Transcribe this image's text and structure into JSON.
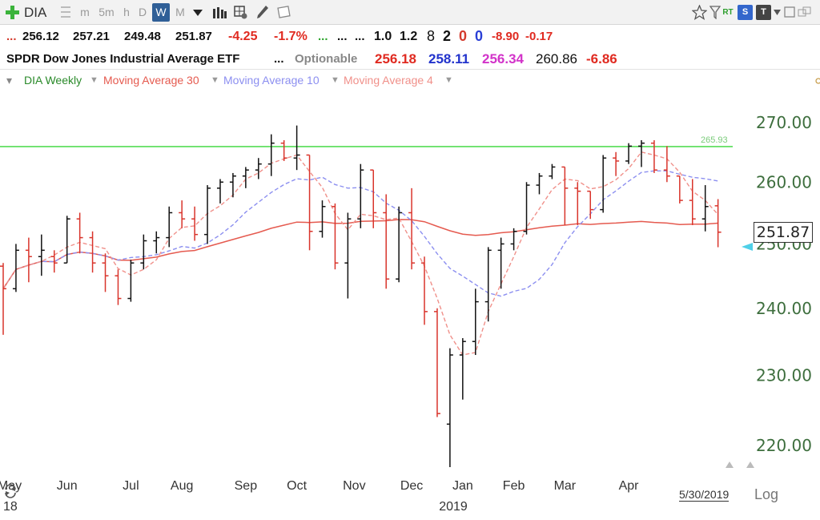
{
  "toolbar": {
    "symbol": "DIA",
    "intervals": [
      "m",
      "5m",
      "h",
      "D",
      "W",
      "M"
    ],
    "active_interval": "W",
    "rt_label": "RT",
    "s_label": "S",
    "t_label": "T"
  },
  "quote": {
    "prefix": "...",
    "open": "256.12",
    "high": "257.21",
    "low": "249.48",
    "close": "251.87",
    "change": "-4.25",
    "change_pct": "-1.7%",
    "dots_green": "...",
    "dots_black1": "...",
    "dots_black2": "...",
    "v1": "1.0",
    "v2": "1.2",
    "n1": "8",
    "n2": "2",
    "n3": "0",
    "n4": "0",
    "d1": "-8.90",
    "d2": "-0.17"
  },
  "info": {
    "name": "SPDR Dow Jones Industrial Average ETF",
    "dots": "...",
    "optionable": "Optionable",
    "p1": "256.18",
    "p2": "258.11",
    "p3": "256.34",
    "p4": "260.86",
    "p5": "-6.86"
  },
  "legend": {
    "series": "DIA Weekly",
    "ma30": "Moving Average 30",
    "ma10": "Moving Average 10",
    "ma4": "Moving Average 4"
  },
  "colors": {
    "up": "#111111",
    "down": "#d9342b",
    "ma30": "#e55a4f",
    "ma10": "#8c8ff0",
    "ma4": "#f0908a",
    "hline": "#55dd55",
    "axis_text": "#3d6e3d"
  },
  "chart_data": {
    "type": "ohlc",
    "y_ticks": [
      "270.00",
      "260.00",
      "250.00",
      "240.00",
      "230.00",
      "220.00"
    ],
    "ylim": [
      216,
      275
    ],
    "x_labels": [
      "May",
      "Jun",
      "Jul",
      "Aug",
      "Sep",
      "Oct",
      "Nov",
      "Dec",
      "Jan",
      "Feb",
      "Mar",
      "Apr"
    ],
    "x_label_weeks": [
      0.5,
      5,
      10,
      14,
      19,
      23,
      27.5,
      32,
      36,
      40,
      44,
      49
    ],
    "year_label": "2019",
    "year_prefix": "18",
    "date_label": "5/30/2019",
    "scale_label": "Log",
    "horizontal_line": {
      "value": 265.93,
      "label": "265.93"
    },
    "last_price_label": "251.87",
    "last_price": 251.87,
    "bars": [
      [
        246.5,
        247,
        236,
        243
      ],
      [
        243,
        250,
        242.5,
        249
      ],
      [
        249,
        251,
        244,
        248
      ],
      [
        248,
        251.5,
        245,
        249
      ],
      [
        248,
        249,
        245.5,
        247
      ],
      [
        247,
        254.5,
        247,
        254
      ],
      [
        254,
        255,
        248.5,
        251
      ],
      [
        251,
        252,
        245.5,
        247
      ],
      [
        247,
        248.5,
        242.5,
        245
      ],
      [
        245,
        246,
        240.5,
        241.5
      ],
      [
        241.5,
        247.5,
        241,
        247
      ],
      [
        247,
        251.5,
        246,
        250.5
      ],
      [
        250.5,
        252,
        248.5,
        251
      ],
      [
        251,
        256,
        249.5,
        255
      ],
      [
        255,
        257,
        252.5,
        254
      ],
      [
        254,
        256,
        250.5,
        251.5
      ],
      [
        251.5,
        259.5,
        250,
        259
      ],
      [
        259,
        260.5,
        256.5,
        260
      ],
      [
        260,
        261.5,
        257.5,
        261
      ],
      [
        261,
        262.5,
        259,
        262
      ],
      [
        262,
        264,
        260.5,
        263
      ],
      [
        263,
        268,
        261,
        266.5
      ],
      [
        266.5,
        267,
        263.5,
        264
      ],
      [
        264,
        269.5,
        262,
        264.5
      ],
      [
        264.5,
        264.5,
        249,
        252
      ],
      [
        252,
        257,
        251,
        256
      ],
      [
        256,
        256.5,
        246,
        247
      ],
      [
        247,
        255,
        241.5,
        254
      ],
      [
        254,
        263,
        252.5,
        262
      ],
      [
        262,
        262,
        252.5,
        255
      ],
      [
        255,
        258,
        243,
        244.5
      ],
      [
        244.5,
        256,
        244,
        255
      ],
      [
        255,
        259,
        246,
        247
      ],
      [
        247,
        248,
        237.5,
        239.5
      ],
      [
        239.5,
        240,
        224,
        224.5
      ],
      [
        223,
        234,
        217,
        233
      ],
      [
        233,
        235.5,
        226.5,
        235
      ],
      [
        235,
        243,
        233,
        241
      ],
      [
        241,
        249.5,
        238,
        249
      ],
      [
        249,
        251,
        243,
        250
      ],
      [
        250,
        252.5,
        249,
        252
      ],
      [
        252,
        260,
        251.5,
        259.5
      ],
      [
        259.5,
        261.5,
        258,
        261
      ],
      [
        261,
        263,
        260.5,
        262.5
      ],
      [
        262.5,
        262.5,
        253,
        259
      ],
      [
        259,
        260,
        253,
        258.5
      ],
      [
        258.5,
        258.5,
        254,
        255.5
      ],
      [
        255.5,
        264.5,
        255,
        264
      ],
      [
        264,
        265,
        261,
        263.5
      ],
      [
        263.5,
        266.5,
        263,
        266
      ],
      [
        266,
        267,
        262.5,
        266.5
      ],
      [
        266.5,
        267,
        261.5,
        262
      ],
      [
        262,
        266,
        260,
        261
      ],
      [
        261,
        261,
        256.5,
        257
      ],
      [
        257,
        260.5,
        253,
        254
      ],
      [
        254,
        259.5,
        252,
        256
      ],
      [
        256.12,
        257.21,
        249.48,
        251.87
      ]
    ]
  }
}
